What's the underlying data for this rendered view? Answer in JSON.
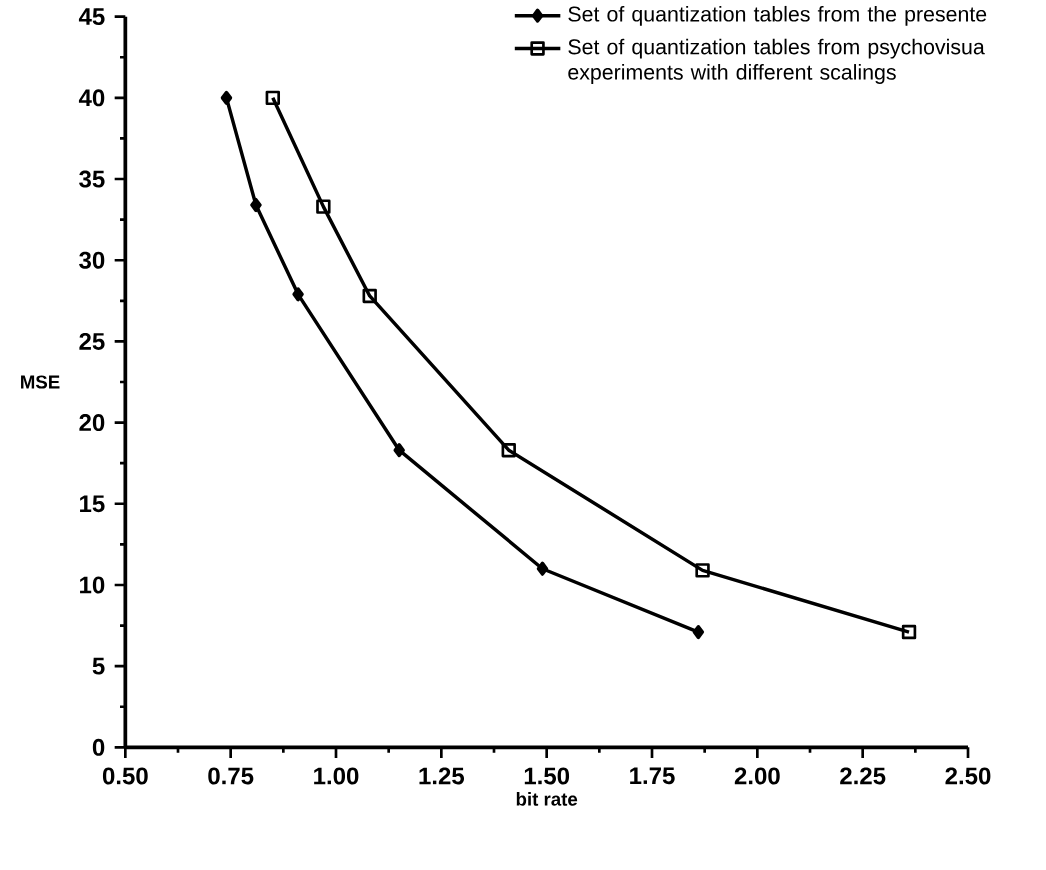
{
  "chart_data": {
    "type": "line",
    "xlabel": "bit rate",
    "ylabel": "MSE",
    "xlim": [
      0.5,
      2.5
    ],
    "ylim": [
      0,
      45
    ],
    "xticks": [
      {
        "value": 0.5,
        "label": "0.50"
      },
      0.75,
      {
        "value": 1.0,
        "label": "1.00"
      },
      1.25,
      {
        "value": 1.5,
        "label": "1.50"
      },
      1.75,
      {
        "value": 2.0,
        "label": "2.00"
      },
      2.25,
      {
        "value": 2.5,
        "label": "2.50"
      }
    ],
    "yticks": [
      0,
      5,
      10,
      15,
      20,
      25,
      30,
      35,
      40,
      45
    ],
    "legend": "top right",
    "grid": false,
    "series": [
      {
        "name": "Set of quantization tables from the presente",
        "color": "#000000",
        "marker": "diamond",
        "x": [
          0.74,
          0.81,
          0.91,
          1.15,
          1.49,
          1.86
        ],
        "values": [
          40.0,
          33.4,
          27.9,
          18.3,
          11.0,
          7.1
        ]
      },
      {
        "name": "Set of quantization tables from psychovisua experiments with different scalings",
        "color": "#000000",
        "marker": "square",
        "x": [
          0.85,
          0.97,
          1.08,
          1.41,
          1.87,
          2.36
        ],
        "values": [
          40.0,
          33.3,
          27.8,
          18.3,
          10.9,
          7.1
        ]
      }
    ]
  }
}
